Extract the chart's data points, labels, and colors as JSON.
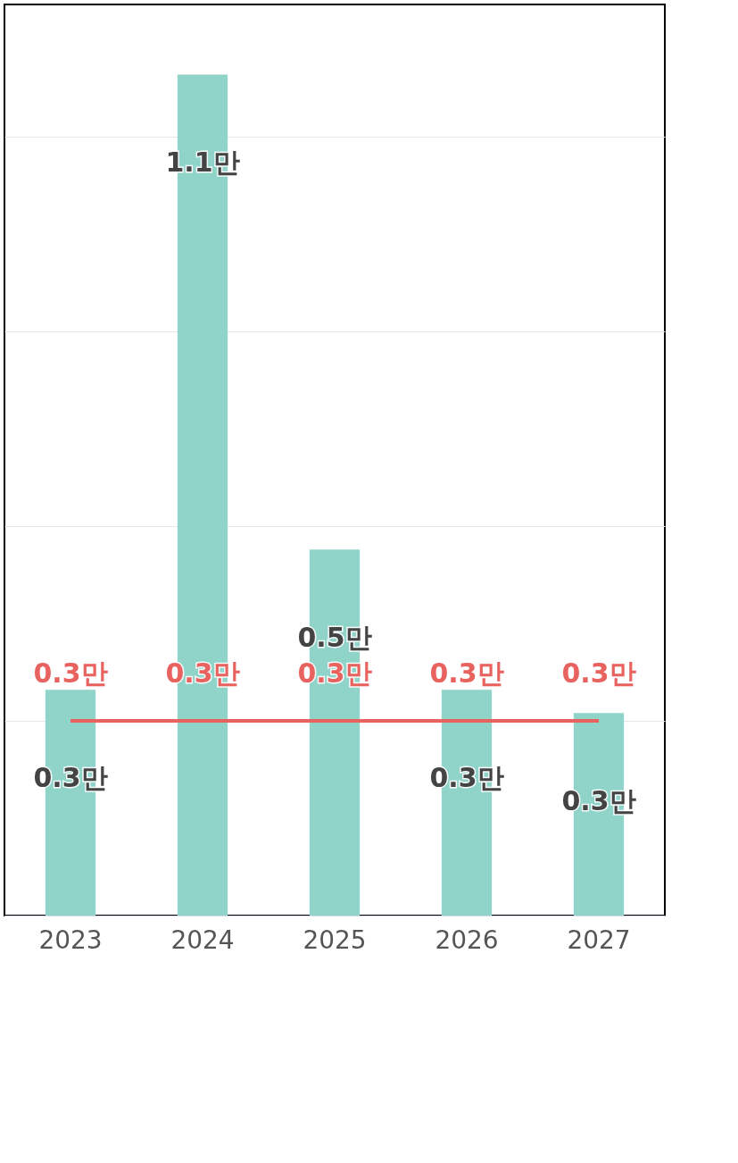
{
  "chart_data": {
    "type": "bar",
    "categories": [
      "2023",
      "2024",
      "2025",
      "2026",
      "2027"
    ],
    "series": [
      {
        "color": "#8fd3c9",
        "values": [
          0.29,
          1.08,
          0.47,
          0.29,
          0.26
        ],
        "value_labels": [
          "0.3만",
          "1.1만",
          "0.5만",
          "0.3만",
          "0.3만"
        ]
      },
      {
        "type": "line",
        "color": "#e8625f",
        "values": [
          0.25,
          0.25,
          0.25,
          0.25,
          0.25
        ],
        "value_labels": [
          "0.3만",
          "0.3만",
          "0.3만",
          "0.3만",
          "0.3만"
        ],
        "marker": "none"
      }
    ],
    "ylim": [
      0,
      1.17
    ],
    "yticks": [
      {
        "value": 0,
        "label": null
      },
      {
        "value": 0.25,
        "label": null
      },
      {
        "value": 0.5,
        "label": null
      },
      {
        "value": 0.75,
        "label": null
      },
      {
        "value": 1,
        "label": null
      }
    ],
    "grid": "y",
    "tick_labels": "x",
    "legend": false
  }
}
